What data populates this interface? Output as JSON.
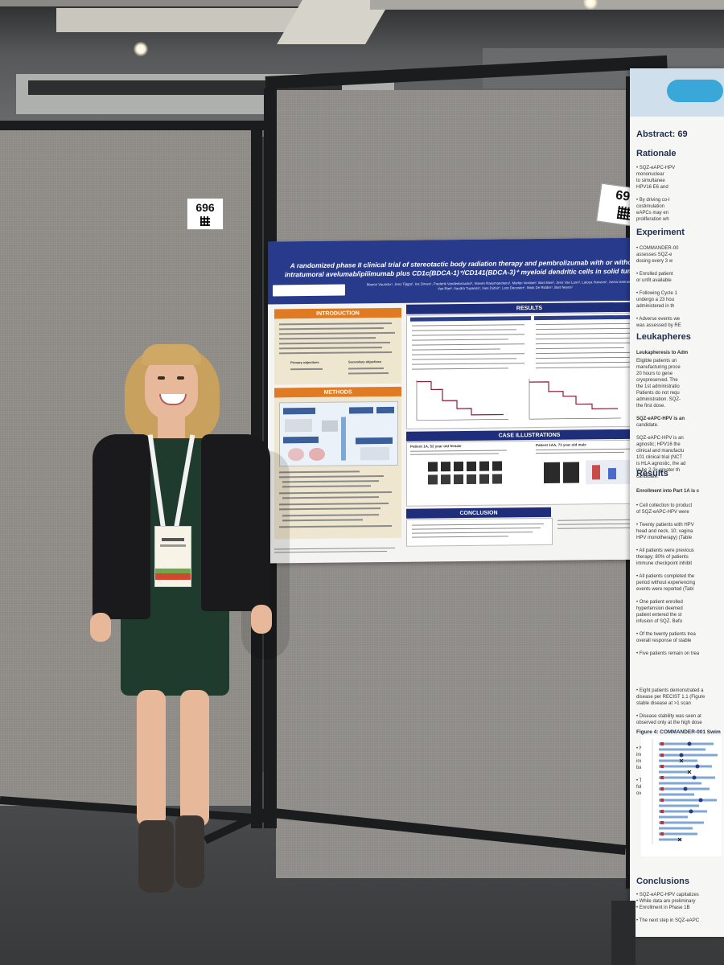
{
  "booth_numbers": {
    "left": "696",
    "right": "694"
  },
  "poster": {
    "title": "A randomized phase II clinical trial of stereotactic body radiation therapy and pembrolizumab with or without intratumoral avelumab/ipilimumab plus CD1c(BDCA-1)⁺/CD141(BDCA-3)⁺ myeloid dendritic cells in solid tumors",
    "authors": "Manon Vounckx¹, Jens Tijtgat¹, Iris Dirven¹, Frederik Vandenbroucke², Steven Raeymaeckers², Martijn Verdam², Bart Ilsen², Jens Van Loon², Latoya Stevens¹, Xenia Geeraerts³, Ivan Van Riet³, Sandra Tuyaerts¹, Ines Dufait⁴, Lore Decoster¹, Mark De Ridder⁴, Bart Neyns¹",
    "sections": {
      "introduction": "INTRODUCTION",
      "methods": "METHODS",
      "results": "RESULTS",
      "case_illustrations": "CASE ILLUSTRATIONS",
      "conclusion": "CONCLUSION"
    },
    "objectives": {
      "primary": "Primary objectives",
      "secondary": "Secondary objectives"
    },
    "case1": "Patient 1A, 52 year old female",
    "case2": "Patient 1AA, 73 year old male"
  },
  "banner": {
    "abstract": "Abstract: 69",
    "rationale": "Rationale",
    "experimental": "Experiment",
    "leukapheresis": "Leukapheres",
    "results": "Results",
    "conclusions": "Conclusions",
    "figure": "Figure 4: COMMANDER-001 Swim"
  },
  "colors": {
    "poster_header": "#283a8c",
    "intro_orange": "#e07a23",
    "results_navy": "#1f2e7a",
    "panel_gray": "#8e8b86",
    "dress_green": "#1f3b2e",
    "jacket_black": "#1a1a1c"
  }
}
